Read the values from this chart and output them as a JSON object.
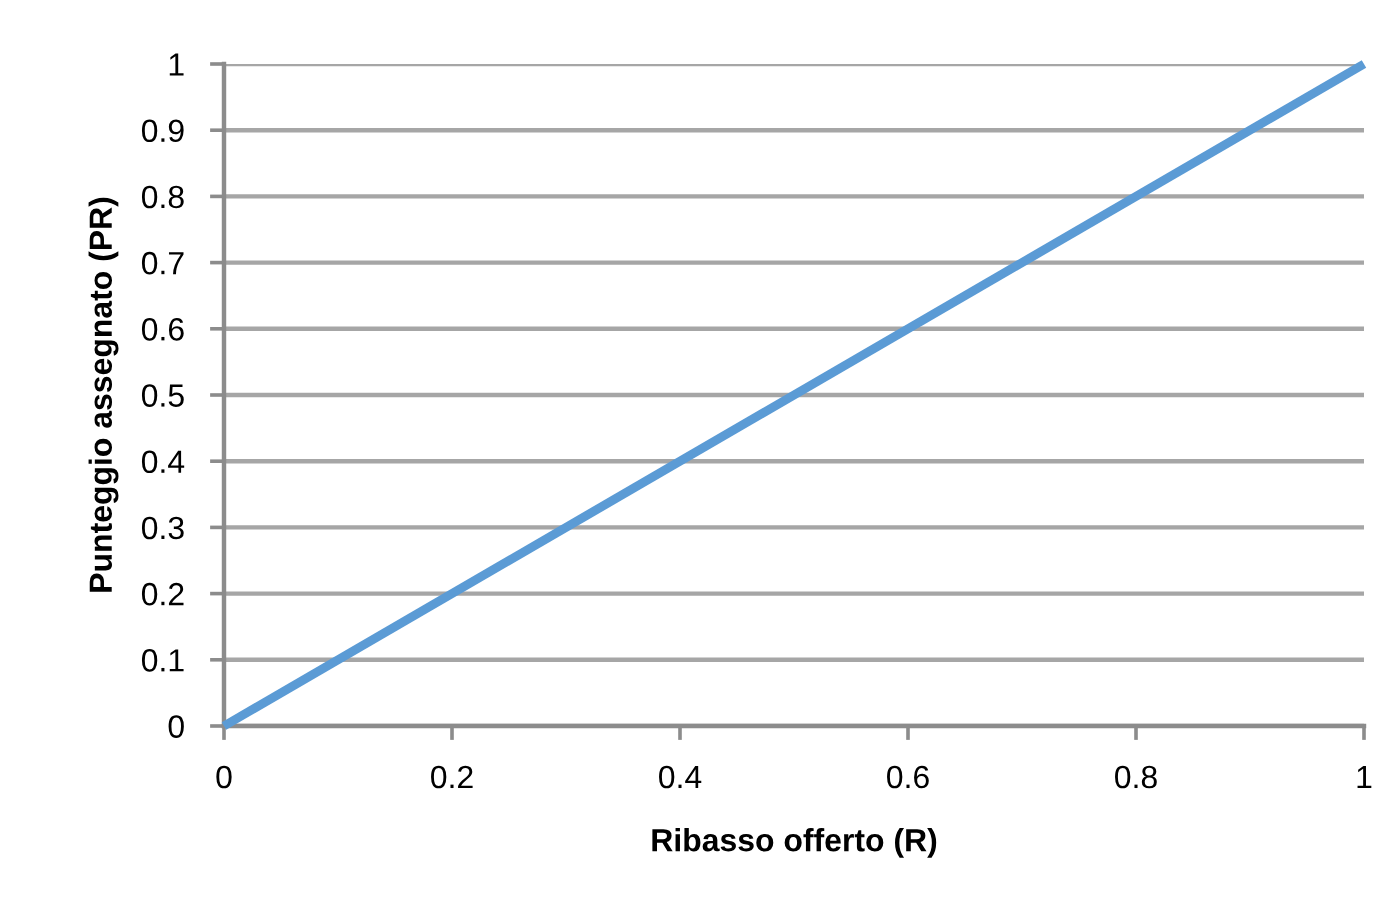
{
  "chart_data": {
    "type": "line",
    "xlabel": "Ribasso offerto (R)",
    "ylabel": "Punteggio assegnato (PR)",
    "x": [
      0,
      1
    ],
    "series": [
      {
        "color": "#5b9bd5",
        "values": [
          0,
          1
        ]
      }
    ],
    "xlim": [
      0,
      1
    ],
    "ylim": [
      0,
      1
    ],
    "xticks": [
      0,
      0.2,
      0.4,
      0.6,
      0.8,
      1
    ],
    "yticks": [
      0,
      0.1,
      0.2,
      0.3,
      0.4,
      0.5,
      0.6,
      0.7,
      0.8,
      0.9,
      1
    ],
    "grid": "y"
  }
}
